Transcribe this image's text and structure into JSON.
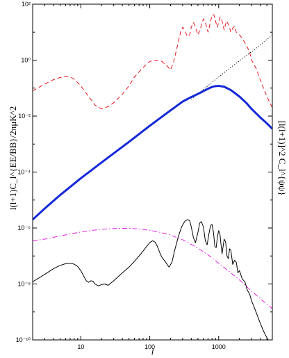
{
  "chart_data": {
    "type": "line",
    "title": "",
    "xlabel": "l",
    "ylabel_left": "l(l+1)C_l^{EE/BB}/2πμK^2",
    "ylabel_right": "[l(l+1)]^2 C_l^{ψψ}",
    "x_scale": "log",
    "y_scale": "log",
    "xlim": [
      2,
      6000
    ],
    "ylim": [
      1e-10,
      100
    ],
    "grid": false,
    "legend": "none",
    "x_ticks": [
      {
        "value": 10,
        "label": "10"
      },
      {
        "value": 100,
        "label": "100"
      },
      {
        "value": 1000,
        "label": "1000"
      }
    ],
    "y_ticks": [
      {
        "value": 1e-10,
        "label": "10⁻¹⁰"
      },
      {
        "value": 1e-08,
        "label": "10⁻⁸"
      },
      {
        "value": 1e-06,
        "label": "10⁻⁶"
      },
      {
        "value": 0.0001,
        "label": "10⁻⁴"
      },
      {
        "value": 0.01,
        "label": "10⁻²"
      },
      {
        "value": 1,
        "label": "10⁰"
      },
      {
        "value": 100,
        "label": "10²"
      }
    ],
    "series": [
      {
        "style": "dashed",
        "color": "#e8141c",
        "width": 1,
        "x": [
          2,
          3,
          4,
          5,
          6,
          7,
          8,
          10,
          13,
          16,
          20,
          25,
          30,
          40,
          50,
          60,
          80,
          100,
          120,
          150,
          180,
          200,
          220,
          250,
          280,
          300,
          320,
          350,
          380,
          400,
          430,
          450,
          500,
          550,
          600,
          650,
          700,
          750,
          800,
          850,
          900,
          950,
          1000,
          1050,
          1100,
          1150,
          1200,
          1250,
          1300,
          1400,
          1500,
          1600,
          1700,
          1800,
          2000,
          2200,
          2500,
          2800,
          3000,
          3500,
          4000,
          5000,
          6000
        ],
        "y": [
          0.08,
          0.14,
          0.2,
          0.24,
          0.26,
          0.25,
          0.21,
          0.12,
          0.05,
          0.025,
          0.018,
          0.022,
          0.03,
          0.06,
          0.12,
          0.25,
          0.55,
          0.9,
          1.0,
          0.9,
          0.6,
          0.45,
          0.8,
          3.0,
          10.0,
          15.0,
          12.0,
          7.0,
          8.0,
          15.0,
          22.0,
          18.0,
          8.0,
          15.0,
          30.0,
          20.0,
          10.0,
          20.0,
          40.0,
          42.0,
          25.0,
          15.0,
          22.0,
          35.0,
          30.0,
          18.0,
          12.0,
          18.0,
          25.0,
          18.0,
          10.0,
          14.0,
          16.0,
          10.0,
          8.0,
          6.0,
          3.5,
          2.0,
          1.0,
          0.5,
          0.2,
          0.05,
          0.02
        ]
      },
      {
        "style": "dotted",
        "color": "#000000",
        "width": 1,
        "x": [
          400,
          600,
          1000,
          1500,
          2000,
          3000,
          4000,
          5000,
          6000
        ],
        "y": [
          0.04,
          0.09,
          0.25,
          0.55,
          0.95,
          2.0,
          3.5,
          5.5,
          8.0
        ]
      },
      {
        "style": "solid",
        "color": "#1428d8",
        "width": 3,
        "x": [
          2,
          3,
          5,
          10,
          20,
          50,
          100,
          200,
          300,
          400,
          500,
          600,
          700,
          800,
          900,
          1000,
          1200,
          1500,
          2000,
          2500,
          3000,
          4000,
          5000,
          6000
        ],
        "y": [
          2e-06,
          5e-06,
          1.5e-05,
          6e-05,
          0.00022,
          0.0012,
          0.0045,
          0.016,
          0.033,
          0.048,
          0.062,
          0.078,
          0.095,
          0.11,
          0.118,
          0.12,
          0.112,
          0.085,
          0.05,
          0.03,
          0.018,
          0.009,
          0.0055,
          0.0035
        ]
      },
      {
        "style": "dashdot",
        "color": "#e81ce8",
        "width": 1,
        "x": [
          2,
          3,
          5,
          8,
          10,
          15,
          20,
          30,
          40,
          50,
          70,
          100,
          150,
          200,
          300,
          400,
          500,
          700,
          1000,
          1500,
          2000,
          3000,
          4000,
          5000,
          6000
        ],
        "y": [
          3.5e-07,
          4e-07,
          5.2e-07,
          6.5e-07,
          7.2e-07,
          8.3e-07,
          9e-07,
          9.6e-07,
          9.8e-07,
          9.7e-07,
          9.2e-07,
          8.3e-07,
          6.8e-07,
          5.6e-07,
          3.8e-07,
          2.6e-07,
          1.9e-07,
          1.1e-07,
          5.5e-08,
          2.5e-08,
          1.4e-08,
          5.5e-09,
          3e-09,
          1.9e-09,
          1.3e-09
        ]
      },
      {
        "style": "solid",
        "color": "#000000",
        "width": 1,
        "x": [
          2,
          3,
          4,
          5,
          6,
          7,
          8,
          9,
          10,
          11,
          12,
          13,
          14,
          15,
          16,
          18,
          20,
          22,
          25,
          30,
          40,
          50,
          60,
          70,
          80,
          90,
          100,
          110,
          120,
          130,
          140,
          150,
          170,
          190,
          210,
          230,
          260,
          290,
          320,
          350,
          380,
          400,
          430,
          460,
          500,
          530,
          560,
          600,
          640,
          680,
          720,
          760,
          800,
          840,
          880,
          920,
          960,
          1000,
          1040,
          1080,
          1120,
          1160,
          1200,
          1260,
          1320,
          1380,
          1440,
          1500,
          1600,
          1700,
          1800,
          1900,
          2000,
          2200,
          2400,
          2600,
          2800,
          3000,
          3300,
          3600,
          4000,
          4500,
          5000,
          5500,
          6000
        ],
        "y": [
          1.2e-08,
          2.2e-08,
          3.5e-08,
          4.6e-08,
          5.3e-08,
          5.5e-08,
          5.1e-08,
          4.2e-08,
          3e-08,
          1.9e-08,
          1.3e-08,
          1.15e-08,
          1.3e-08,
          1.25e-08,
          1e-08,
          8.5e-09,
          9.5e-09,
          1e-08,
          9e-09,
          1.3e-08,
          2.5e-08,
          4e-08,
          6.5e-08,
          1e-07,
          1.5e-07,
          2.2e-07,
          3e-07,
          3.5e-07,
          3.1e-07,
          2.1e-07,
          1.3e-07,
          9e-08,
          6e-08,
          4e-08,
          6e-08,
          1.6e-07,
          5e-07,
          1.1e-06,
          1.7e-06,
          2e-06,
          1.8e-06,
          1.1e-06,
          4.5e-07,
          3e-07,
          7e-07,
          1.5e-06,
          1.7e-06,
          1.1e-06,
          3.5e-07,
          2.5e-07,
          6e-07,
          1.2e-06,
          1.35e-06,
          7e-07,
          2.2e-07,
          2e-07,
          5e-07,
          8e-07,
          6.5e-07,
          2.6e-07,
          1.2e-07,
          2.2e-07,
          4e-07,
          3.2e-07,
          1e-07,
          8e-08,
          1.8e-07,
          1.6e-07,
          5e-08,
          7e-08,
          6e-08,
          2.5e-08,
          3e-08,
          1.5e-08,
          1.2e-08,
          6e-09,
          4.5e-09,
          2.5e-09,
          1.4e-09,
          8e-10,
          4e-10,
          2e-10,
          1.2e-10,
          8e-11,
          5e-11
        ]
      }
    ]
  }
}
